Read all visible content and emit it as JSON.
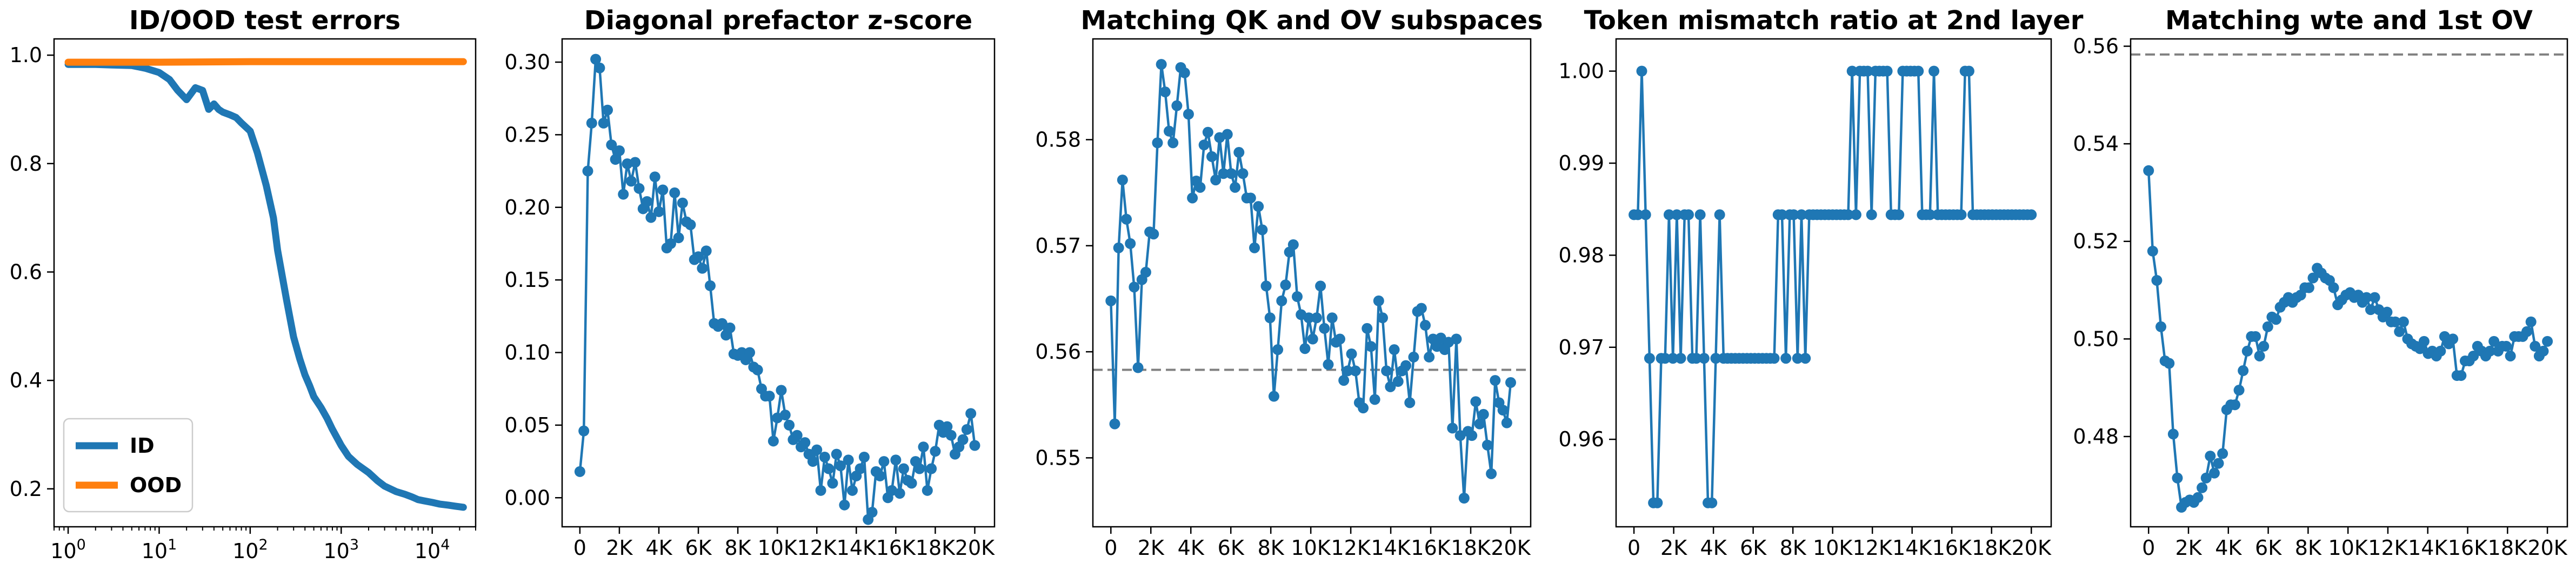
{
  "figure": {
    "background": "#ffffff"
  },
  "chart_data": [
    {
      "id": "panel1",
      "type": "line",
      "title": "ID/OOD test errors",
      "xscale": "log",
      "xlim": [
        0.7,
        30000
      ],
      "ylim": [
        0.13,
        1.03
      ],
      "yticks": [
        0.2,
        0.4,
        0.6,
        0.8,
        1.0
      ],
      "ytick_labels": [
        "0.2",
        "0.4",
        "0.6",
        "0.8",
        "1.0"
      ],
      "xticks": [
        1,
        10,
        100,
        1000,
        10000
      ],
      "xtick_labels": [
        [
          "10",
          "0"
        ],
        [
          "10",
          "1"
        ],
        [
          "10",
          "2"
        ],
        [
          "10",
          "3"
        ],
        [
          "10",
          "4"
        ]
      ],
      "legend": "lower-left",
      "series": [
        {
          "name": "ID",
          "color": "#1f77b4",
          "x": [
            1,
            2,
            3,
            5,
            7,
            10,
            13,
            16,
            20,
            25,
            30,
            35,
            40,
            45,
            50,
            60,
            70,
            80,
            100,
            120,
            150,
            180,
            200,
            250,
            300,
            350,
            400,
            450,
            500,
            600,
            700,
            800,
            1000,
            1200,
            1500,
            2000,
            2500,
            3000,
            4000,
            5000,
            6000,
            7000,
            8000,
            10000,
            12000,
            15000,
            18000,
            20000,
            22000
          ],
          "y": [
            0.983,
            0.983,
            0.982,
            0.981,
            0.976,
            0.968,
            0.955,
            0.935,
            0.918,
            0.94,
            0.935,
            0.9,
            0.91,
            0.9,
            0.895,
            0.89,
            0.885,
            0.875,
            0.86,
            0.82,
            0.76,
            0.7,
            0.64,
            0.55,
            0.48,
            0.44,
            0.41,
            0.39,
            0.37,
            0.35,
            0.33,
            0.31,
            0.28,
            0.26,
            0.245,
            0.23,
            0.215,
            0.205,
            0.195,
            0.19,
            0.185,
            0.18,
            0.178,
            0.175,
            0.172,
            0.17,
            0.168,
            0.167,
            0.166
          ]
        },
        {
          "name": "OOD",
          "color": "#ff7f0e",
          "x": [
            1,
            10,
            100,
            1000,
            10000,
            22000
          ],
          "y": [
            0.987,
            0.987,
            0.988,
            0.988,
            0.988,
            0.988
          ]
        }
      ]
    },
    {
      "id": "panel2",
      "type": "line",
      "title": "Diagonal prefactor z-score",
      "xlim": [
        -900,
        21000
      ],
      "ylim": [
        -0.02,
        0.316
      ],
      "yticks": [
        0.0,
        0.05,
        0.1,
        0.15,
        0.2,
        0.25,
        0.3
      ],
      "ytick_labels": [
        "0.00",
        "0.05",
        "0.10",
        "0.15",
        "0.20",
        "0.25",
        "0.30"
      ],
      "xticks": [
        0,
        2000,
        4000,
        6000,
        8000,
        10000,
        12000,
        14000,
        16000,
        18000,
        20000
      ],
      "xtick_labels": [
        "0",
        "2K",
        "4K",
        "6K",
        "8K",
        "10K",
        "12K",
        "14K",
        "16K",
        "18K",
        "20K"
      ],
      "series": [
        {
          "color": "#1f77b4",
          "marker": "circle",
          "y": [
            0.018,
            0.046,
            0.225,
            0.258,
            0.302,
            0.296,
            0.258,
            0.267,
            0.243,
            0.233,
            0.239,
            0.209,
            0.23,
            0.218,
            0.231,
            0.213,
            0.199,
            0.204,
            0.193,
            0.221,
            0.197,
            0.212,
            0.172,
            0.175,
            0.21,
            0.179,
            0.203,
            0.19,
            0.188,
            0.164,
            0.166,
            0.158,
            0.17,
            0.146,
            0.12,
            0.118,
            0.12,
            0.112,
            0.117,
            0.099,
            0.098,
            0.1,
            0.095,
            0.1,
            0.09,
            0.088,
            0.075,
            0.07,
            0.07,
            0.039,
            0.055,
            0.074,
            0.057,
            0.05,
            0.04,
            0.043,
            0.035,
            0.038,
            0.03,
            0.025,
            0.033,
            0.005,
            0.028,
            0.02,
            0.01,
            0.03,
            0.022,
            -0.005,
            0.026,
            0.005,
            0.015,
            0.02,
            0.028,
            -0.015,
            -0.01,
            0.018,
            0.015,
            0.025,
            0.0,
            0.005,
            0.026,
            0.003,
            0.02,
            0.012,
            0.01,
            0.025,
            0.02,
            0.035,
            0.005,
            0.02,
            0.032,
            0.05,
            0.045,
            0.049,
            0.043,
            0.03,
            0.035,
            0.04,
            0.047,
            0.058,
            0.036
          ]
        }
      ]
    },
    {
      "id": "panel3",
      "type": "line",
      "title": "Matching QK and OV subspaces",
      "xlim": [
        -900,
        21000
      ],
      "ylim": [
        0.5435,
        0.5895
      ],
      "yticks": [
        0.55,
        0.56,
        0.57,
        0.58
      ],
      "ytick_labels": [
        "0.55",
        "0.56",
        "0.57",
        "0.58"
      ],
      "xticks": [
        0,
        2000,
        4000,
        6000,
        8000,
        10000,
        12000,
        14000,
        16000,
        18000,
        20000
      ],
      "xtick_labels": [
        "0",
        "2K",
        "4K",
        "6K",
        "8K",
        "10K",
        "12K",
        "14K",
        "16K",
        "18K",
        "20K"
      ],
      "reference_line": {
        "y": 0.5583,
        "style": "dashed",
        "color": "#808080"
      },
      "series": [
        {
          "color": "#1f77b4",
          "marker": "circle",
          "y": [
            0.5648,
            0.5532,
            0.5698,
            0.5762,
            0.5725,
            0.5702,
            0.5661,
            0.5585,
            0.5668,
            0.5675,
            0.5713,
            0.5711,
            0.5797,
            0.5871,
            0.5845,
            0.5808,
            0.5797,
            0.5832,
            0.5868,
            0.5863,
            0.5824,
            0.5745,
            0.5761,
            0.5755,
            0.5795,
            0.5807,
            0.5784,
            0.5762,
            0.5802,
            0.5768,
            0.5805,
            0.5768,
            0.5755,
            0.5788,
            0.5768,
            0.5745,
            0.5745,
            0.5698,
            0.5737,
            0.5715,
            0.5662,
            0.5632,
            0.5558,
            0.5602,
            0.5648,
            0.5663,
            0.5694,
            0.5701,
            0.5652,
            0.5635,
            0.5603,
            0.5632,
            0.5612,
            0.5632,
            0.5662,
            0.5622,
            0.5588,
            0.5632,
            0.5609,
            0.5612,
            0.5573,
            0.5582,
            0.5598,
            0.5582,
            0.5552,
            0.5547,
            0.5622,
            0.5605,
            0.5555,
            0.5648,
            0.5632,
            0.5582,
            0.5567,
            0.5602,
            0.5572,
            0.5582,
            0.5587,
            0.5552,
            0.5595,
            0.5638,
            0.5641,
            0.5625,
            0.5595,
            0.5612,
            0.5605,
            0.5613,
            0.5602,
            0.5609,
            0.5528,
            0.5612,
            0.5521,
            0.5462,
            0.5525,
            0.5521,
            0.5553,
            0.5532,
            0.5541,
            0.5512,
            0.5485,
            0.5573,
            0.5552,
            0.5545,
            0.5533,
            0.5571
          ]
        }
      ]
    },
    {
      "id": "panel4",
      "type": "line",
      "title": "Token mismatch ratio at 2nd layer",
      "xlim": [
        -900,
        21000
      ],
      "ylim": [
        0.9505,
        1.0035
      ],
      "yticks": [
        0.96,
        0.97,
        0.98,
        0.99,
        1.0
      ],
      "ytick_labels": [
        "0.96",
        "0.97",
        "0.98",
        "0.99",
        "1.00"
      ],
      "xticks": [
        0,
        2000,
        4000,
        6000,
        8000,
        10000,
        12000,
        14000,
        16000,
        18000,
        20000
      ],
      "xtick_labels": [
        "0",
        "2K",
        "4K",
        "6K",
        "8K",
        "10K",
        "12K",
        "14K",
        "16K",
        "18K",
        "20K"
      ],
      "series": [
        {
          "color": "#1f77b4",
          "marker": "circle",
          "y": [
            0.9844,
            0.9844,
            1.0,
            0.9844,
            0.9688,
            0.9531,
            0.9531,
            0.9688,
            0.9688,
            0.9844,
            0.9688,
            0.9844,
            0.9688,
            0.9844,
            0.9844,
            0.9688,
            0.9688,
            0.9844,
            0.9688,
            0.9531,
            0.9531,
            0.9688,
            0.9844,
            0.9688,
            0.9688,
            0.9688,
            0.9688,
            0.9688,
            0.9688,
            0.9688,
            0.9688,
            0.9688,
            0.9688,
            0.9688,
            0.9688,
            0.9688,
            0.9688,
            0.9844,
            0.9844,
            0.9688,
            0.9844,
            0.9844,
            0.9688,
            0.9844,
            0.9688,
            0.9844,
            0.9844,
            0.9844,
            0.9844,
            0.9844,
            0.9844,
            0.9844,
            0.9844,
            0.9844,
            0.9844,
            0.9844,
            1.0,
            0.9844,
            1.0,
            1.0,
            1.0,
            0.9844,
            1.0,
            1.0,
            1.0,
            1.0,
            0.9844,
            0.9844,
            0.9844,
            1.0,
            1.0,
            1.0,
            1.0,
            1.0,
            0.9844,
            0.9844,
            0.9844,
            1.0,
            0.9844,
            0.9844,
            0.9844,
            0.9844,
            0.9844,
            0.9844,
            0.9844,
            1.0,
            1.0,
            0.9844,
            0.9844,
            0.9844,
            0.9844,
            0.9844,
            0.9844,
            0.9844,
            0.9844,
            0.9844,
            0.9844,
            0.9844,
            0.9844,
            0.9844,
            0.9844,
            0.9844,
            0.9844
          ]
        }
      ]
    },
    {
      "id": "panel5",
      "type": "line",
      "title": "Matching wte and 1st OV",
      "xlim": [
        -900,
        21000
      ],
      "ylim": [
        0.4615,
        0.5615
      ],
      "yticks": [
        0.48,
        0.5,
        0.52,
        0.54,
        0.56
      ],
      "ytick_labels": [
        "0.48",
        "0.50",
        "0.52",
        "0.54",
        "0.56"
      ],
      "xticks": [
        0,
        2000,
        4000,
        6000,
        8000,
        10000,
        12000,
        14000,
        16000,
        18000,
        20000
      ],
      "xtick_labels": [
        "0",
        "2K",
        "4K",
        "6K",
        "8K",
        "10K",
        "12K",
        "14K",
        "16K",
        "18K",
        "20K"
      ],
      "reference_line": {
        "y": 0.5583,
        "style": "dashed",
        "color": "#808080"
      },
      "series": [
        {
          "color": "#1f77b4",
          "marker": "circle",
          "y": [
            0.5345,
            0.518,
            0.512,
            0.5025,
            0.4955,
            0.495,
            0.4805,
            0.4715,
            0.4655,
            0.4665,
            0.467,
            0.4665,
            0.4675,
            0.4695,
            0.4715,
            0.476,
            0.4725,
            0.4745,
            0.4765,
            0.4855,
            0.4865,
            0.4865,
            0.4895,
            0.4935,
            0.4975,
            0.5005,
            0.5005,
            0.4965,
            0.4985,
            0.5025,
            0.5045,
            0.504,
            0.5065,
            0.5075,
            0.5085,
            0.5075,
            0.5085,
            0.509,
            0.5105,
            0.5105,
            0.5125,
            0.5145,
            0.5135,
            0.5125,
            0.512,
            0.5105,
            0.507,
            0.508,
            0.509,
            0.5095,
            0.5085,
            0.509,
            0.5075,
            0.5085,
            0.506,
            0.5085,
            0.506,
            0.5045,
            0.5055,
            0.5035,
            0.5035,
            0.5015,
            0.5035,
            0.5,
            0.499,
            0.4985,
            0.498,
            0.4995,
            0.497,
            0.4975,
            0.4965,
            0.4975,
            0.5005,
            0.499,
            0.5,
            0.4925,
            0.4925,
            0.4955,
            0.4955,
            0.4965,
            0.4985,
            0.4975,
            0.4965,
            0.4975,
            0.4995,
            0.4975,
            0.4985,
            0.4985,
            0.4965,
            0.5005,
            0.5005,
            0.5005,
            0.5015,
            0.5035,
            0.4985,
            0.4965,
            0.4975,
            0.4995
          ]
        }
      ]
    }
  ]
}
